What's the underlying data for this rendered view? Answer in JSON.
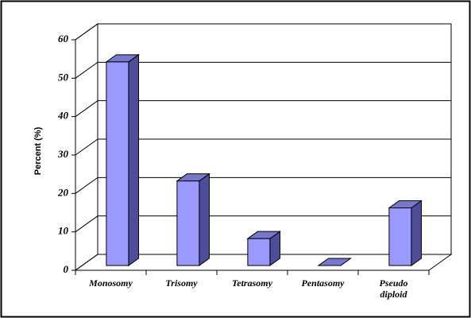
{
  "chart_data": {
    "type": "bar3d",
    "y_label": "Percent (%)",
    "categories": [
      "Monosomy",
      "Trisomy",
      "Tetrasomy",
      "Pentasomy",
      "Pseudo diploid"
    ],
    "values": [
      53,
      22,
      7,
      0,
      15
    ],
    "color": "#9999ff",
    "ylim": [
      0,
      60
    ],
    "yticks": [
      0,
      10,
      20,
      30,
      40,
      50,
      60
    ],
    "grid": true
  }
}
